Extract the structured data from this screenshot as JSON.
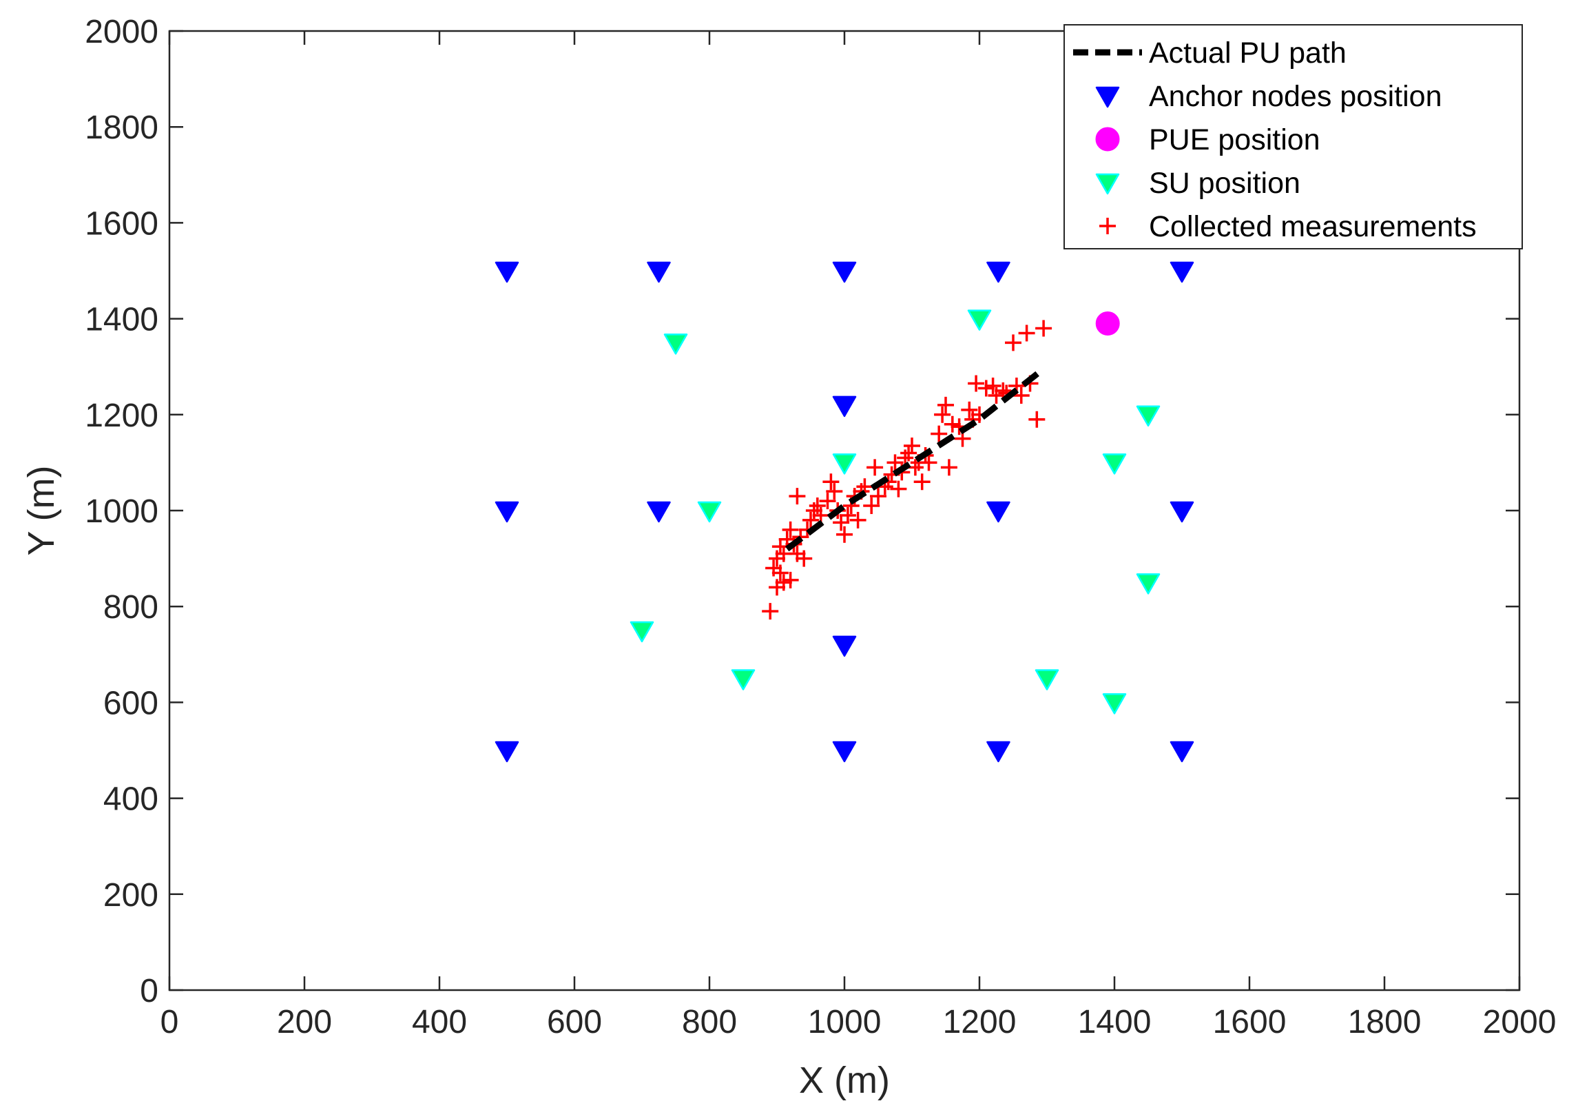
{
  "chart_data": {
    "type": "scatter",
    "title": "",
    "xlabel": "X (m)",
    "ylabel": "Y (m)",
    "xlim": [
      0,
      2000
    ],
    "ylim": [
      0,
      2000
    ],
    "xticks": [
      0,
      200,
      400,
      600,
      800,
      1000,
      1200,
      1400,
      1600,
      1800,
      2000
    ],
    "yticks": [
      0,
      200,
      400,
      600,
      800,
      1000,
      1200,
      1400,
      1600,
      1800,
      2000
    ],
    "xtick_labels": [
      "0",
      "200",
      "400",
      "600",
      "800",
      "1000",
      "1200",
      "1400",
      "1600",
      "1800",
      "2000"
    ],
    "ytick_labels": [
      "0",
      "200",
      "400",
      "600",
      "800",
      "1000",
      "1200",
      "1400",
      "1600",
      "1800",
      "2000"
    ],
    "grid": false,
    "legend_position": "top-right",
    "series": [
      {
        "name": "Actual PU path",
        "kind": "line",
        "style": "dashed",
        "color": "#000000",
        "points": [
          [
            915,
            920
          ],
          [
            1000,
            1010
          ],
          [
            1100,
            1100
          ],
          [
            1200,
            1190
          ],
          [
            1290,
            1290
          ]
        ]
      },
      {
        "name": "Anchor nodes position",
        "kind": "marker",
        "marker": "triangle-down",
        "color": "#0000ff",
        "points": [
          [
            500,
            1500
          ],
          [
            725,
            1500
          ],
          [
            1000,
            1500
          ],
          [
            1228,
            1500
          ],
          [
            1500,
            1500
          ],
          [
            1000,
            1220
          ],
          [
            500,
            1000
          ],
          [
            725,
            1000
          ],
          [
            1228,
            1000
          ],
          [
            1500,
            1000
          ],
          [
            1000,
            720
          ],
          [
            500,
            500
          ],
          [
            1000,
            500
          ],
          [
            1228,
            500
          ],
          [
            1500,
            500
          ]
        ]
      },
      {
        "name": "PUE position",
        "kind": "marker",
        "marker": "circle",
        "color": "#ff00ff",
        "points": [
          [
            1390,
            1390
          ]
        ]
      },
      {
        "name": "SU position",
        "kind": "marker",
        "marker": "triangle-down",
        "color": "#00ff7f",
        "edge_color": "#00ffff",
        "points": [
          [
            750,
            1350
          ],
          [
            1200,
            1400
          ],
          [
            1450,
            1200
          ],
          [
            1000,
            1100
          ],
          [
            1400,
            1100
          ],
          [
            800,
            1000
          ],
          [
            1450,
            850
          ],
          [
            700,
            750
          ],
          [
            850,
            650
          ],
          [
            1300,
            650
          ],
          [
            1400,
            600
          ]
        ]
      },
      {
        "name": "Collected measurements",
        "kind": "marker",
        "marker": "plus",
        "color": "#ff0000",
        "points": [
          [
            890,
            790
          ],
          [
            900,
            840
          ],
          [
            910,
            850
          ],
          [
            920,
            855
          ],
          [
            895,
            880
          ],
          [
            905,
            870
          ],
          [
            900,
            900
          ],
          [
            910,
            910
          ],
          [
            905,
            925
          ],
          [
            915,
            940
          ],
          [
            925,
            930
          ],
          [
            930,
            910
          ],
          [
            940,
            900
          ],
          [
            935,
            945
          ],
          [
            920,
            960
          ],
          [
            930,
            1030
          ],
          [
            945,
            960
          ],
          [
            950,
            980
          ],
          [
            955,
            1000
          ],
          [
            965,
            990
          ],
          [
            960,
            1010
          ],
          [
            975,
            1020
          ],
          [
            985,
            1040
          ],
          [
            980,
            1060
          ],
          [
            990,
            1000
          ],
          [
            995,
            975
          ],
          [
            1000,
            950
          ],
          [
            1005,
            990
          ],
          [
            1010,
            1010
          ],
          [
            1015,
            1030
          ],
          [
            1020,
            980
          ],
          [
            1025,
            1040
          ],
          [
            1030,
            1050
          ],
          [
            1040,
            1010
          ],
          [
            1045,
            1090
          ],
          [
            1050,
            1030
          ],
          [
            1060,
            1050
          ],
          [
            1065,
            1060
          ],
          [
            1070,
            1075
          ],
          [
            1075,
            1100
          ],
          [
            1080,
            1045
          ],
          [
            1085,
            1080
          ],
          [
            1090,
            1110
          ],
          [
            1095,
            1120
          ],
          [
            1100,
            1135
          ],
          [
            1105,
            1090
          ],
          [
            1110,
            1100
          ],
          [
            1115,
            1060
          ],
          [
            1120,
            1115
          ],
          [
            1125,
            1100
          ],
          [
            1140,
            1160
          ],
          [
            1145,
            1200
          ],
          [
            1150,
            1220
          ],
          [
            1155,
            1090
          ],
          [
            1160,
            1180
          ],
          [
            1170,
            1175
          ],
          [
            1175,
            1150
          ],
          [
            1185,
            1210
          ],
          [
            1190,
            1190
          ],
          [
            1195,
            1265
          ],
          [
            1200,
            1200
          ],
          [
            1210,
            1255
          ],
          [
            1220,
            1260
          ],
          [
            1225,
            1240
          ],
          [
            1235,
            1250
          ],
          [
            1240,
            1245
          ],
          [
            1250,
            1350
          ],
          [
            1255,
            1260
          ],
          [
            1262,
            1240
          ],
          [
            1270,
            1370
          ],
          [
            1275,
            1265
          ],
          [
            1285,
            1190
          ],
          [
            1295,
            1380
          ]
        ]
      }
    ]
  }
}
